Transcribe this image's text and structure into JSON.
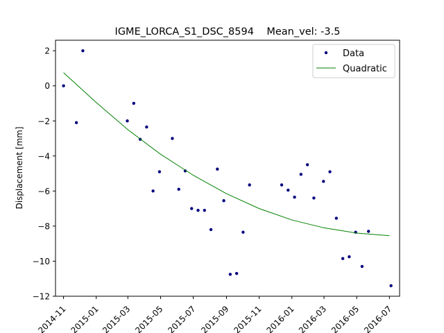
{
  "chart_data": {
    "type": "scatter",
    "title": "IGME_LORCA_S1_DSC_8594    Mean_vel: -3.5",
    "xlabel": "",
    "ylabel": "Displacement [mm]",
    "x_axis_type": "date",
    "xlim": [
      "2014-10-17",
      "2016-07-20"
    ],
    "ylim": [
      -12.0,
      2.6
    ],
    "x_ticks": [
      "2014-11",
      "2015-01",
      "2015-03",
      "2015-05",
      "2015-07",
      "2015-09",
      "2015-11",
      "2016-01",
      "2016-03",
      "2016-05",
      "2016-07"
    ],
    "x_tick_dates": [
      "2014-11-01",
      "2015-01-01",
      "2015-03-01",
      "2015-05-01",
      "2015-07-01",
      "2015-09-01",
      "2015-11-01",
      "2016-01-01",
      "2016-03-01",
      "2016-05-01",
      "2016-07-01"
    ],
    "y_ticks": [
      2,
      0,
      -2,
      -4,
      -6,
      -8,
      -10,
      -12
    ],
    "grid": false,
    "legend_position": "top-right",
    "legend": [
      {
        "label": "Data",
        "marker": "dot",
        "color": "#00007f"
      },
      {
        "label": "Quadratic",
        "marker": "line",
        "color": "#008000"
      }
    ],
    "series": [
      {
        "name": "Data",
        "kind": "scatter",
        "color": "#00007f",
        "points": [
          {
            "x": "2014-11-01",
            "y": 0.0
          },
          {
            "x": "2014-11-25",
            "y": -2.1
          },
          {
            "x": "2014-12-07",
            "y": 2.0
          },
          {
            "x": "2015-02-28",
            "y": -2.0
          },
          {
            "x": "2015-03-12",
            "y": -1.0
          },
          {
            "x": "2015-03-24",
            "y": -3.05
          },
          {
            "x": "2015-04-05",
            "y": -2.35
          },
          {
            "x": "2015-04-17",
            "y": -6.0
          },
          {
            "x": "2015-04-29",
            "y": -4.9
          },
          {
            "x": "2015-05-23",
            "y": -3.0
          },
          {
            "x": "2015-06-04",
            "y": -5.9
          },
          {
            "x": "2015-06-16",
            "y": -4.85
          },
          {
            "x": "2015-06-28",
            "y": -7.0
          },
          {
            "x": "2015-07-10",
            "y": -7.1
          },
          {
            "x": "2015-07-22",
            "y": -7.1
          },
          {
            "x": "2015-08-03",
            "y": -8.2
          },
          {
            "x": "2015-08-15",
            "y": -4.75
          },
          {
            "x": "2015-08-27",
            "y": -6.55
          },
          {
            "x": "2015-09-08",
            "y": -10.75
          },
          {
            "x": "2015-09-20",
            "y": -10.7
          },
          {
            "x": "2015-10-02",
            "y": -8.35
          },
          {
            "x": "2015-10-14",
            "y": -5.65
          },
          {
            "x": "2015-12-13",
            "y": -5.65
          },
          {
            "x": "2015-12-25",
            "y": -5.95
          },
          {
            "x": "2016-01-06",
            "y": -6.35
          },
          {
            "x": "2016-01-18",
            "y": -5.05
          },
          {
            "x": "2016-01-30",
            "y": -4.5
          },
          {
            "x": "2016-02-11",
            "y": -6.4
          },
          {
            "x": "2016-02-29",
            "y": -5.45
          },
          {
            "x": "2016-03-12",
            "y": -4.9
          },
          {
            "x": "2016-03-24",
            "y": -7.55
          },
          {
            "x": "2016-04-05",
            "y": -9.85
          },
          {
            "x": "2016-04-17",
            "y": -9.75
          },
          {
            "x": "2016-04-29",
            "y": -8.35
          },
          {
            "x": "2016-05-11",
            "y": -10.3
          },
          {
            "x": "2016-05-23",
            "y": -8.3
          },
          {
            "x": "2016-07-04",
            "y": -11.4
          }
        ]
      },
      {
        "name": "Quadratic",
        "kind": "line",
        "color": "#008000",
        "points": [
          {
            "x": "2014-11-01",
            "y": 0.75
          },
          {
            "x": "2015-01-01",
            "y": -0.95
          },
          {
            "x": "2015-03-01",
            "y": -2.5
          },
          {
            "x": "2015-05-01",
            "y": -3.9
          },
          {
            "x": "2015-07-01",
            "y": -5.1
          },
          {
            "x": "2015-09-01",
            "y": -6.15
          },
          {
            "x": "2015-11-01",
            "y": -7.0
          },
          {
            "x": "2016-01-01",
            "y": -7.65
          },
          {
            "x": "2016-03-01",
            "y": -8.1
          },
          {
            "x": "2016-05-01",
            "y": -8.4
          },
          {
            "x": "2016-07-01",
            "y": -8.55
          }
        ]
      }
    ]
  }
}
